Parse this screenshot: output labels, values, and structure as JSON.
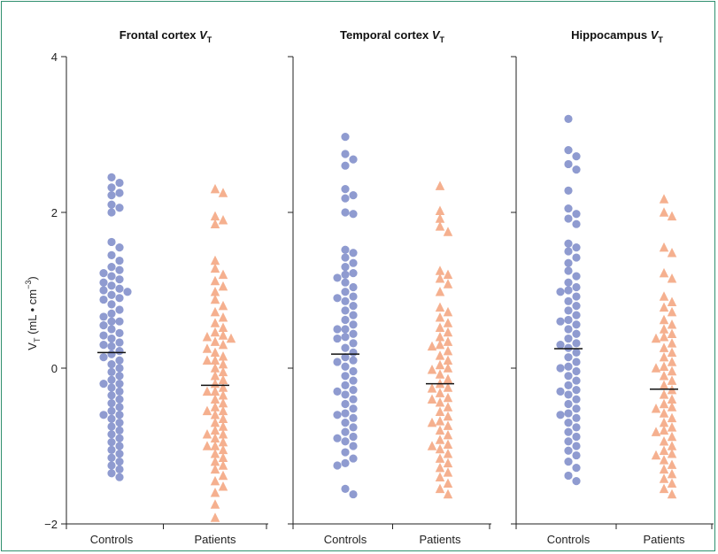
{
  "figure": {
    "ylabel_main": "V",
    "ylabel_sub": "T",
    "ylabel_rest": " (mL • cm",
    "ylabel_sup": "−3",
    "ylabel_close": ")"
  },
  "chart_data": [
    {
      "type": "scatter",
      "title": "Frontal cortex ",
      "title_var": "V",
      "title_sub": "T",
      "ylabel": "VT (mL • cm−3)",
      "ylim": [
        -2,
        4
      ],
      "yticks": [
        -2,
        0,
        2,
        4
      ],
      "categories": [
        "Controls",
        "Patients"
      ],
      "series": [
        {
          "name": "Controls",
          "color": "#8f9bd0",
          "marker": "circle",
          "median": 0.2,
          "values": [
            2.45,
            2.38,
            2.32,
            2.25,
            2.22,
            2.1,
            2.06,
            2.0,
            1.62,
            1.55,
            1.45,
            1.38,
            1.3,
            1.26,
            1.22,
            1.18,
            1.14,
            1.1,
            1.06,
            1.02,
            0.98,
            0.94,
            0.88,
            0.82,
            0.75,
            0.7,
            0.66,
            0.6,
            0.55,
            0.5,
            0.45,
            0.42,
            0.38,
            0.33,
            0.28,
            0.22,
            0.18,
            0.14,
            0.1,
            0.05,
            0.0,
            -0.05,
            -0.1,
            -0.15,
            -0.2,
            -0.25,
            -0.3,
            -0.35,
            -0.4,
            -0.45,
            -0.5,
            -0.55,
            -0.6,
            -0.65,
            -0.7,
            -0.75,
            -0.8,
            -0.85,
            -0.9,
            -0.95,
            -1.0,
            -1.05,
            -1.1,
            -1.15,
            -1.2,
            -1.25,
            -1.3,
            -1.35,
            -1.4,
            0.3,
            0.9,
            1.0,
            0.6,
            -0.2,
            -0.6
          ]
        },
        {
          "name": "Patients",
          "color": "#f5b08f",
          "marker": "triangle",
          "median": -0.22,
          "values": [
            2.3,
            2.25,
            1.95,
            1.9,
            1.85,
            1.38,
            1.28,
            1.2,
            1.12,
            1.05,
            0.98,
            0.88,
            0.8,
            0.72,
            0.65,
            0.58,
            0.52,
            0.46,
            0.42,
            0.38,
            0.34,
            0.3,
            0.25,
            0.2,
            0.15,
            0.1,
            0.05,
            0.0,
            -0.05,
            -0.1,
            -0.15,
            -0.2,
            -0.25,
            -0.3,
            -0.35,
            -0.4,
            -0.45,
            -0.5,
            -0.55,
            -0.6,
            -0.65,
            -0.7,
            -0.75,
            -0.8,
            -0.85,
            -0.9,
            -0.95,
            -1.0,
            -1.05,
            -1.1,
            -1.15,
            -1.2,
            -1.25,
            -1.3,
            -1.38,
            -1.45,
            -1.52,
            -1.6,
            -1.75,
            -1.92,
            0.4,
            -0.55,
            -0.85,
            -1.0,
            0.1,
            -0.3
          ]
        }
      ]
    },
    {
      "type": "scatter",
      "title": "Temporal cortex ",
      "title_var": "V",
      "title_sub": "T",
      "ylim": [
        -2,
        4
      ],
      "yticks": [
        -2,
        0,
        2,
        4
      ],
      "categories": [
        "Controls",
        "Patients"
      ],
      "series": [
        {
          "name": "Controls",
          "color": "#8f9bd0",
          "marker": "circle",
          "median": 0.18,
          "values": [
            2.97,
            2.75,
            2.68,
            2.6,
            2.3,
            2.22,
            2.18,
            2.0,
            1.98,
            1.52,
            1.48,
            1.42,
            1.35,
            1.3,
            1.22,
            1.16,
            1.1,
            1.04,
            0.98,
            0.92,
            0.86,
            0.8,
            0.74,
            0.68,
            0.62,
            0.56,
            0.5,
            0.44,
            0.38,
            0.32,
            0.26,
            0.2,
            0.14,
            0.08,
            0.02,
            -0.04,
            -0.1,
            -0.16,
            -0.22,
            -0.28,
            -0.34,
            -0.4,
            -0.46,
            -0.52,
            -0.58,
            -0.64,
            -0.7,
            -0.76,
            -0.82,
            -0.88,
            -0.94,
            -1.0,
            -1.08,
            -1.16,
            -1.22,
            -1.25,
            -1.55,
            -1.62,
            0.5,
            0.9,
            -0.3,
            -0.6,
            0.1,
            1.2,
            -0.9,
            0.4
          ]
        },
        {
          "name": "Patients",
          "color": "#f5b08f",
          "marker": "triangle",
          "median": -0.2,
          "values": [
            2.34,
            2.02,
            1.92,
            1.82,
            1.75,
            1.25,
            1.2,
            1.15,
            1.08,
            0.98,
            0.78,
            0.72,
            0.65,
            0.58,
            0.52,
            0.46,
            0.4,
            0.34,
            0.28,
            0.22,
            0.16,
            0.1,
            0.04,
            -0.02,
            -0.08,
            -0.14,
            -0.2,
            -0.26,
            -0.32,
            -0.38,
            -0.44,
            -0.5,
            -0.56,
            -0.62,
            -0.68,
            -0.74,
            -0.8,
            -0.86,
            -0.92,
            -0.98,
            -1.04,
            -1.1,
            -1.16,
            -1.22,
            -1.28,
            -1.34,
            -1.4,
            -1.48,
            -1.55,
            -1.62,
            0.3,
            -0.4,
            -0.7,
            -1.0,
            0.0,
            -0.25
          ]
        }
      ]
    },
    {
      "type": "scatter",
      "title": "Hippocampus ",
      "title_var": "V",
      "title_sub": "T",
      "ylim": [
        -2,
        4
      ],
      "yticks": [
        -2,
        0,
        2,
        4
      ],
      "categories": [
        "Controls",
        "Patients"
      ],
      "series": [
        {
          "name": "Controls",
          "color": "#8f9bd0",
          "marker": "circle",
          "median": 0.25,
          "values": [
            3.2,
            2.8,
            2.72,
            2.62,
            2.55,
            2.28,
            2.05,
            1.98,
            1.92,
            1.85,
            1.6,
            1.55,
            1.5,
            1.42,
            1.35,
            1.25,
            1.18,
            1.1,
            1.04,
            0.98,
            0.92,
            0.86,
            0.8,
            0.74,
            0.68,
            0.62,
            0.56,
            0.5,
            0.44,
            0.38,
            0.32,
            0.26,
            0.2,
            0.14,
            0.08,
            0.02,
            -0.04,
            -0.1,
            -0.16,
            -0.22,
            -0.28,
            -0.34,
            -0.4,
            -0.46,
            -0.52,
            -0.58,
            -0.64,
            -0.7,
            -0.76,
            -0.82,
            -0.88,
            -0.94,
            -1.0,
            -1.06,
            -1.12,
            -1.2,
            -1.28,
            -1.38,
            -1.45,
            0.6,
            0.3,
            -0.3,
            -0.6,
            1.0,
            0.0
          ]
        },
        {
          "name": "Patients",
          "color": "#f5b08f",
          "marker": "triangle",
          "median": -0.27,
          "values": [
            2.17,
            2.0,
            1.95,
            1.55,
            1.48,
            1.22,
            1.15,
            0.92,
            0.85,
            0.78,
            0.72,
            0.62,
            0.56,
            0.5,
            0.44,
            0.38,
            0.32,
            0.26,
            0.2,
            0.14,
            0.08,
            0.02,
            -0.04,
            -0.1,
            -0.16,
            -0.22,
            -0.28,
            -0.34,
            -0.4,
            -0.46,
            -0.52,
            -0.58,
            -0.64,
            -0.7,
            -0.76,
            -0.82,
            -0.88,
            -0.94,
            -1.0,
            -1.06,
            -1.12,
            -1.18,
            -1.24,
            -1.3,
            -1.36,
            -1.42,
            -1.48,
            -1.55,
            -1.62,
            0.4,
            -0.5,
            -0.8,
            -1.1,
            0.0
          ]
        }
      ]
    }
  ]
}
